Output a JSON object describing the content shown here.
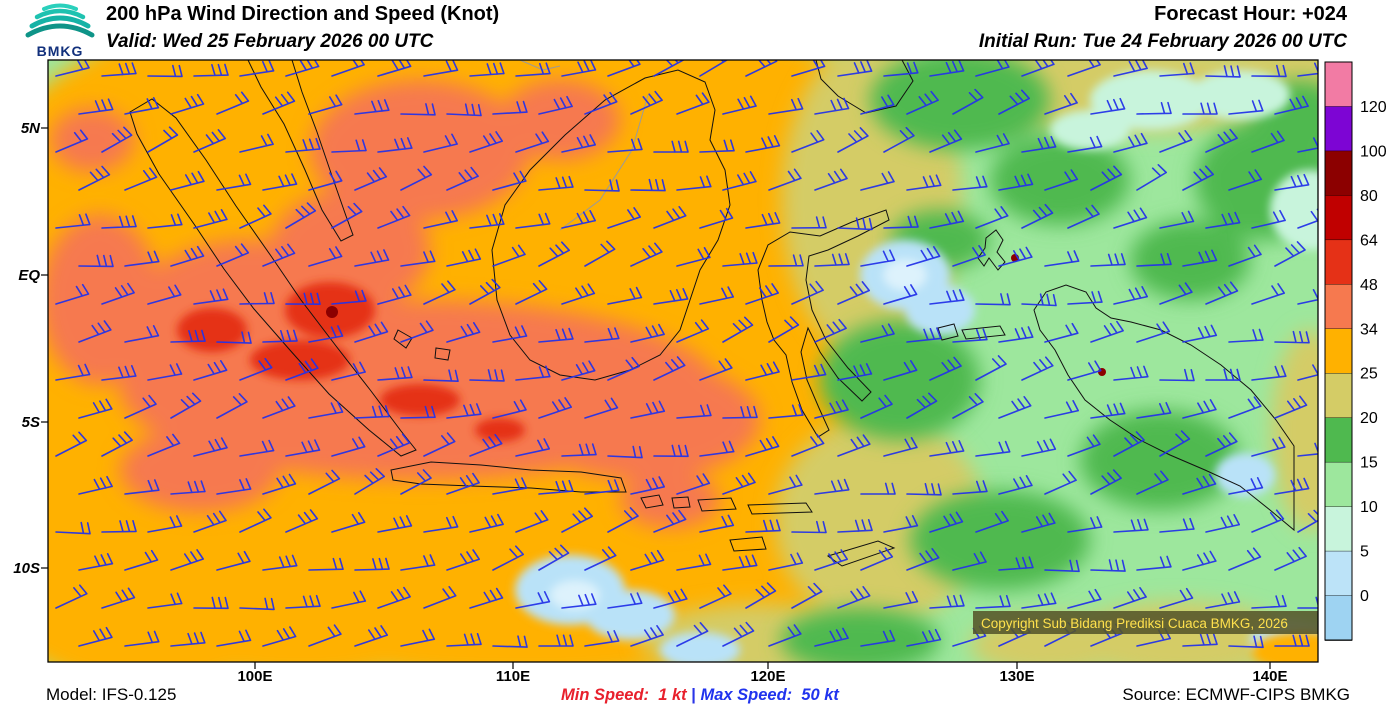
{
  "header": {
    "logo_text": "BMKG",
    "title": "200 hPa Wind Direction and Speed (Knot)",
    "valid": "Valid: Wed 25 February 2026 00 UTC",
    "forecast_hour": "Forecast Hour: +024",
    "initial_run": "Initial Run: Tue 24 February 2026 00 UTC"
  },
  "map": {
    "x_ticks": {
      "labels": [
        "100E",
        "110E",
        "120E",
        "130E",
        "140E"
      ]
    },
    "y_ticks": {
      "labels": [
        "5N",
        "EQ",
        "5S",
        "10S"
      ]
    },
    "copyright": "Copyright Sub Bidang Prediksi Cuaca BMKG, 2026",
    "barbs": {
      "color": "#2433e8",
      "spacing_x": 46,
      "spacing_y": 38,
      "staff_len": 34,
      "tick_len": 11
    }
  },
  "colorbar": {
    "labels": [
      120,
      100,
      80,
      64,
      48,
      34,
      25,
      20,
      15,
      10,
      5,
      0
    ],
    "colors_top_to_bottom": [
      "#F27BA4",
      "#7D05D4",
      "#8C0000",
      "#C00000",
      "#E53117",
      "#F6794F",
      "#FFB100",
      "#D4CC66",
      "#4FB94F",
      "#9DE79D",
      "#C8F4DC",
      "#BCE3F8",
      "#9ED3F2"
    ]
  },
  "footer": {
    "model": "Model: IFS-0.125",
    "min_speed": "Min Speed:  1 kt",
    "separator": " | ",
    "max_speed": "Max Speed:  50 kt",
    "source": "Source: ECMWF-CIPS BMKG"
  }
}
